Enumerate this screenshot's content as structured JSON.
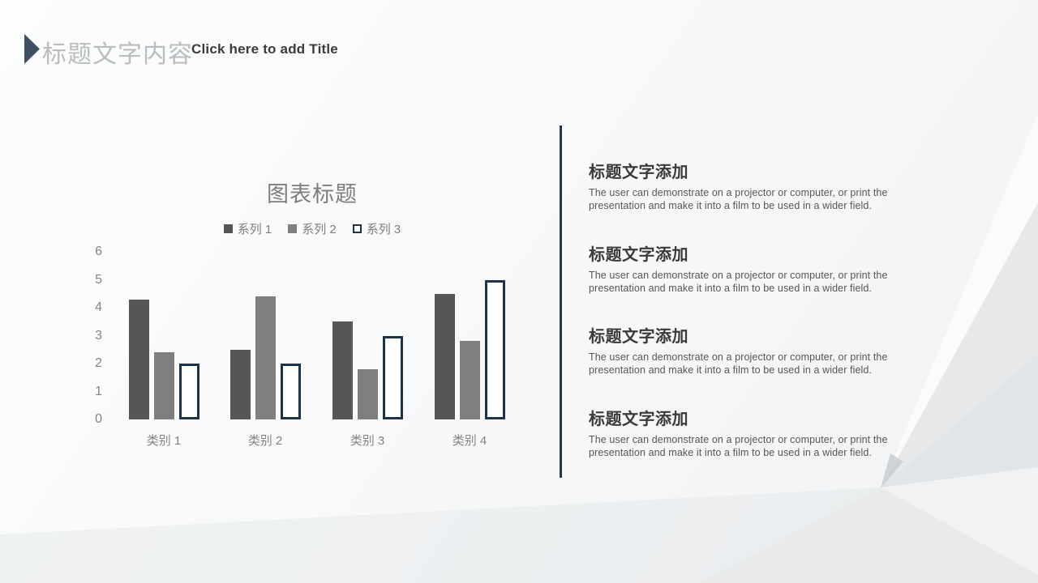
{
  "header": {
    "title_zh": "标题文字内容",
    "title_en": "Click here to add Title"
  },
  "colors": {
    "accent_navy": "#24364b",
    "arrow_navy": "#3e4f63",
    "series1": "#565656",
    "series2": "#7f7f7f",
    "series3_border": "#1e3349",
    "text_gray": "#7f7f7f",
    "heading_dark": "#3a3a3a"
  },
  "chart_data": {
    "type": "bar",
    "title": "图表标题",
    "categories": [
      "类别 1",
      "类别 2",
      "类别 3",
      "类别 4"
    ],
    "series": [
      {
        "name": "系列 1",
        "values": [
          4.3,
          2.5,
          3.5,
          4.5
        ]
      },
      {
        "name": "系列 2",
        "values": [
          2.4,
          4.4,
          1.8,
          2.8
        ]
      },
      {
        "name": "系列 3",
        "values": [
          2.0,
          2.0,
          3.0,
          5.0
        ]
      }
    ],
    "xlabel": "",
    "ylabel": "",
    "ylim": [
      0,
      6
    ],
    "ytick_step": 1,
    "grid": false,
    "legend_position": "top"
  },
  "right_panel": {
    "sections": [
      {
        "heading": "标题文字添加",
        "body": "The user can demonstrate on a projector or computer, or print the presentation and make it into a film to be used in a wider field."
      },
      {
        "heading": "标题文字添加",
        "body": "The user can demonstrate on a projector or computer, or print the presentation and make it into a film to be used in a wider field."
      },
      {
        "heading": "标题文字添加",
        "body": "The user can demonstrate on a projector or computer, or print the presentation and make it into a film to be used in a wider field."
      },
      {
        "heading": "标题文字添加",
        "body": "The user can demonstrate on a projector or computer, or print the presentation and make it into a film to be used in a wider field."
      }
    ]
  }
}
